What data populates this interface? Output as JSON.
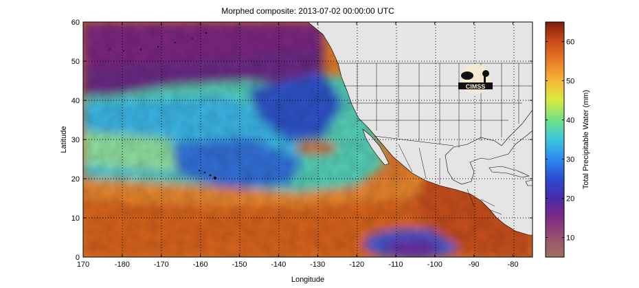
{
  "figure": {
    "title": "Morphed composite: 2013-07-02 00:00:00 UTC",
    "xlabel": "Longitude",
    "ylabel": "Latitude",
    "colorbar_label": "Total Precipitable Water (mm)",
    "logo_text": "CIMSS"
  },
  "chart_data": {
    "type": "heatmap",
    "title": "Morphed composite: 2013-07-02 00:00:00 UTC",
    "xlabel": "Longitude",
    "ylabel": "Latitude",
    "x_ticks": [
      "170",
      "-180",
      "-170",
      "-160",
      "-150",
      "-140",
      "-130",
      "-120",
      "-110",
      "-100",
      "-90",
      "-80"
    ],
    "y_ticks": [
      "0",
      "10",
      "20",
      "30",
      "40",
      "50",
      "60"
    ],
    "xlim": [
      170,
      285
    ],
    "ylim": [
      0,
      60
    ],
    "grid": true,
    "grid_style": "dotted",
    "colorbar": {
      "label": "Total Precipitable Water (mm)",
      "range": [
        5,
        65
      ],
      "ticks": [
        "10",
        "20",
        "30",
        "40",
        "50",
        "60"
      ],
      "colors": [
        "#a0705a",
        "#8a3d8a",
        "#6a1e86",
        "#2c3ec8",
        "#2b8bf0",
        "#38c6e0",
        "#6de28a",
        "#d6ea40",
        "#f4b43a",
        "#e6752a",
        "#c84a18",
        "#7a1e0c"
      ]
    }
  }
}
